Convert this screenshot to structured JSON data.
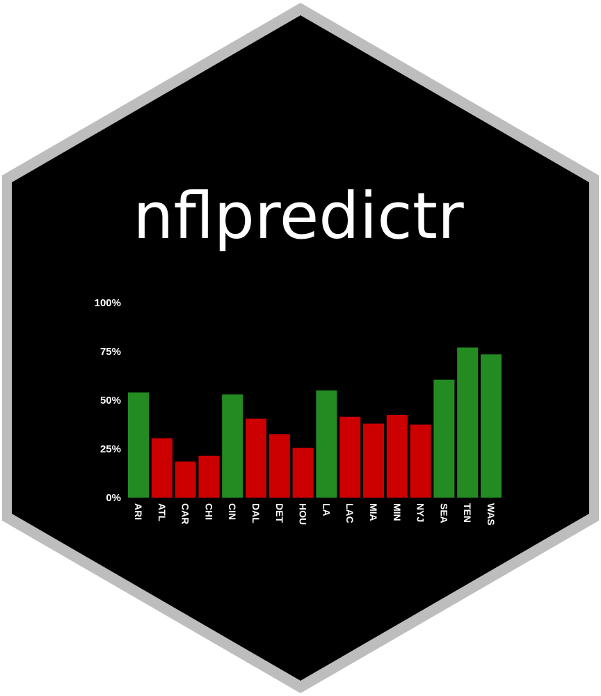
{
  "logo": {
    "title": "nflpredictr",
    "background_color": "#000000",
    "border_color": "#bdbdbd"
  },
  "chart_data": {
    "type": "bar",
    "title": "",
    "xlabel": "",
    "ylabel": "",
    "ylim": [
      0,
      100
    ],
    "y_ticks": [
      0,
      25,
      50,
      75,
      100
    ],
    "y_tick_labels": [
      "0%",
      "25%",
      "50%",
      "75%",
      "100%"
    ],
    "categories": [
      "ARI",
      "ATL",
      "CAR",
      "CHI",
      "CIN",
      "DAL",
      "DET",
      "HOU",
      "LA",
      "LAC",
      "MIA",
      "MIN",
      "NYJ",
      "SEA",
      "TEN",
      "WAS"
    ],
    "values": [
      54,
      30.5,
      18.5,
      21.5,
      53,
      40.5,
      32.5,
      25.5,
      55,
      41.5,
      38,
      42.5,
      37.5,
      60.5,
      77,
      73.5
    ],
    "bar_colors": [
      "#238b22",
      "#cc0000",
      "#cc0000",
      "#cc0000",
      "#238b22",
      "#cc0000",
      "#cc0000",
      "#cc0000",
      "#238b22",
      "#cc0000",
      "#cc0000",
      "#cc0000",
      "#cc0000",
      "#238b22",
      "#238b22",
      "#238b22"
    ],
    "grid": false,
    "legend": "none"
  }
}
